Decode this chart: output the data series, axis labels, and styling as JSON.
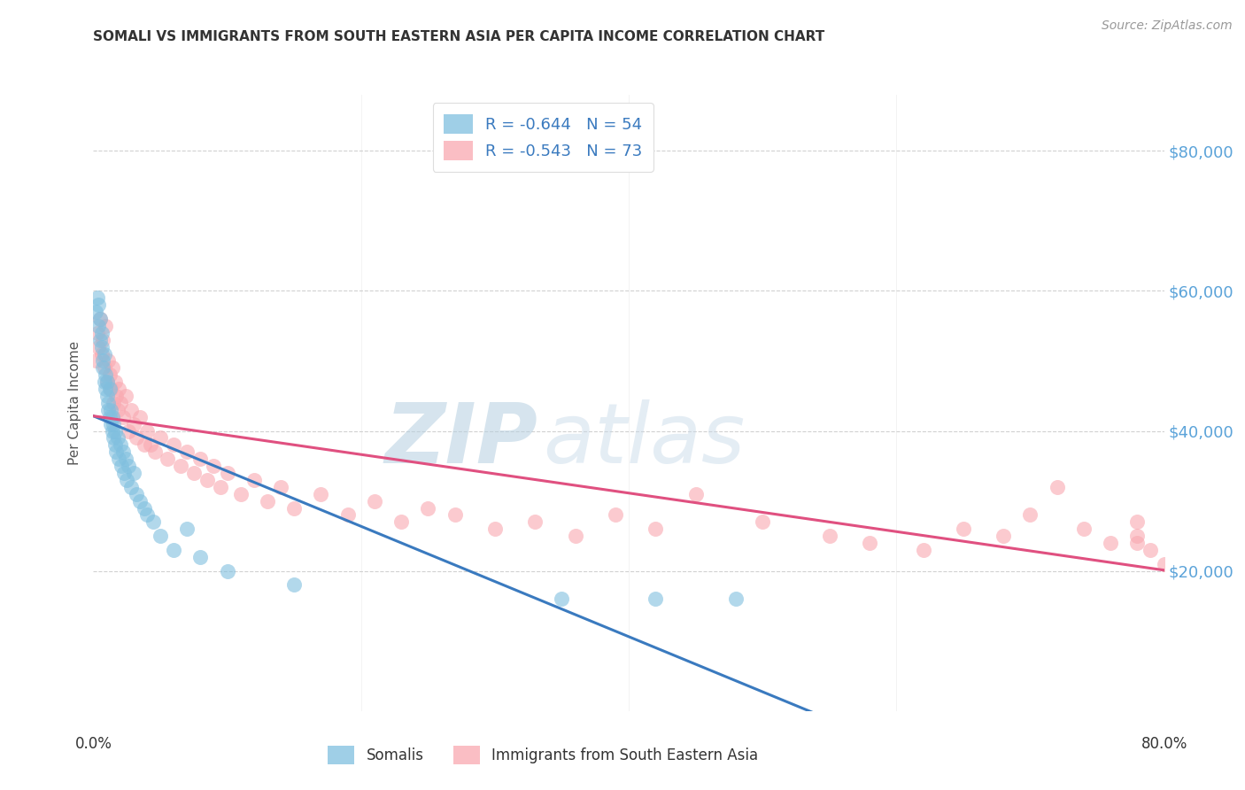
{
  "title": "SOMALI VS IMMIGRANTS FROM SOUTH EASTERN ASIA PER CAPITA INCOME CORRELATION CHART",
  "source": "Source: ZipAtlas.com",
  "ylabel": "Per Capita Income",
  "ytick_labels": [
    "$20,000",
    "$40,000",
    "$60,000",
    "$80,000"
  ],
  "ytick_values": [
    20000,
    40000,
    60000,
    80000
  ],
  "ylim": [
    0,
    88000
  ],
  "xlim": [
    0.0,
    0.8
  ],
  "legend_label1": "Somalis",
  "legend_label2": "Immigrants from South Eastern Asia",
  "r1": "-0.644",
  "n1": "54",
  "r2": "-0.543",
  "n2": "73",
  "color1": "#7fbfdf",
  "color2": "#f9a8b0",
  "line_color1": "#3a7abf",
  "line_color2": "#e05080",
  "tick_color": "#5ba3d9",
  "background": "#ffffff",
  "grid_color": "#cccccc",
  "title_color": "#333333",
  "source_color": "#999999",
  "somali_x": [
    0.002,
    0.003,
    0.004,
    0.004,
    0.005,
    0.005,
    0.006,
    0.006,
    0.007,
    0.007,
    0.008,
    0.008,
    0.009,
    0.009,
    0.01,
    0.01,
    0.011,
    0.011,
    0.012,
    0.012,
    0.013,
    0.013,
    0.014,
    0.014,
    0.015,
    0.015,
    0.016,
    0.016,
    0.017,
    0.018,
    0.019,
    0.02,
    0.021,
    0.022,
    0.023,
    0.024,
    0.025,
    0.026,
    0.028,
    0.03,
    0.032,
    0.035,
    0.038,
    0.04,
    0.045,
    0.05,
    0.06,
    0.07,
    0.08,
    0.1,
    0.15,
    0.35,
    0.42,
    0.48
  ],
  "somali_y": [
    57000,
    59000,
    55000,
    58000,
    53000,
    56000,
    52000,
    54000,
    50000,
    49000,
    47000,
    51000,
    46000,
    48000,
    45000,
    47000,
    44000,
    43000,
    46000,
    42000,
    41000,
    43000,
    40000,
    42000,
    39000,
    41000,
    38000,
    40000,
    37000,
    39000,
    36000,
    38000,
    35000,
    37000,
    34000,
    36000,
    33000,
    35000,
    32000,
    34000,
    31000,
    30000,
    29000,
    28000,
    27000,
    25000,
    23000,
    26000,
    22000,
    20000,
    18000,
    16000,
    16000,
    16000
  ],
  "sea_x": [
    0.002,
    0.003,
    0.004,
    0.005,
    0.006,
    0.007,
    0.008,
    0.009,
    0.01,
    0.011,
    0.012,
    0.013,
    0.014,
    0.015,
    0.016,
    0.017,
    0.018,
    0.019,
    0.02,
    0.022,
    0.024,
    0.026,
    0.028,
    0.03,
    0.032,
    0.035,
    0.038,
    0.04,
    0.043,
    0.046,
    0.05,
    0.055,
    0.06,
    0.065,
    0.07,
    0.075,
    0.08,
    0.085,
    0.09,
    0.095,
    0.1,
    0.11,
    0.12,
    0.13,
    0.14,
    0.15,
    0.17,
    0.19,
    0.21,
    0.23,
    0.25,
    0.27,
    0.3,
    0.33,
    0.36,
    0.39,
    0.42,
    0.45,
    0.5,
    0.55,
    0.58,
    0.62,
    0.65,
    0.68,
    0.7,
    0.72,
    0.74,
    0.76,
    0.78,
    0.78,
    0.78,
    0.79,
    0.8
  ],
  "sea_y": [
    50000,
    54000,
    52000,
    56000,
    51000,
    53000,
    49000,
    55000,
    47000,
    50000,
    48000,
    46000,
    49000,
    44000,
    47000,
    45000,
    43000,
    46000,
    44000,
    42000,
    45000,
    40000,
    43000,
    41000,
    39000,
    42000,
    38000,
    40000,
    38000,
    37000,
    39000,
    36000,
    38000,
    35000,
    37000,
    34000,
    36000,
    33000,
    35000,
    32000,
    34000,
    31000,
    33000,
    30000,
    32000,
    29000,
    31000,
    28000,
    30000,
    27000,
    29000,
    28000,
    26000,
    27000,
    25000,
    28000,
    26000,
    31000,
    27000,
    25000,
    24000,
    23000,
    26000,
    25000,
    28000,
    32000,
    26000,
    24000,
    25000,
    27000,
    24000,
    23000,
    21000
  ],
  "watermark_zip": "ZIP",
  "watermark_atlas": "atlas"
}
